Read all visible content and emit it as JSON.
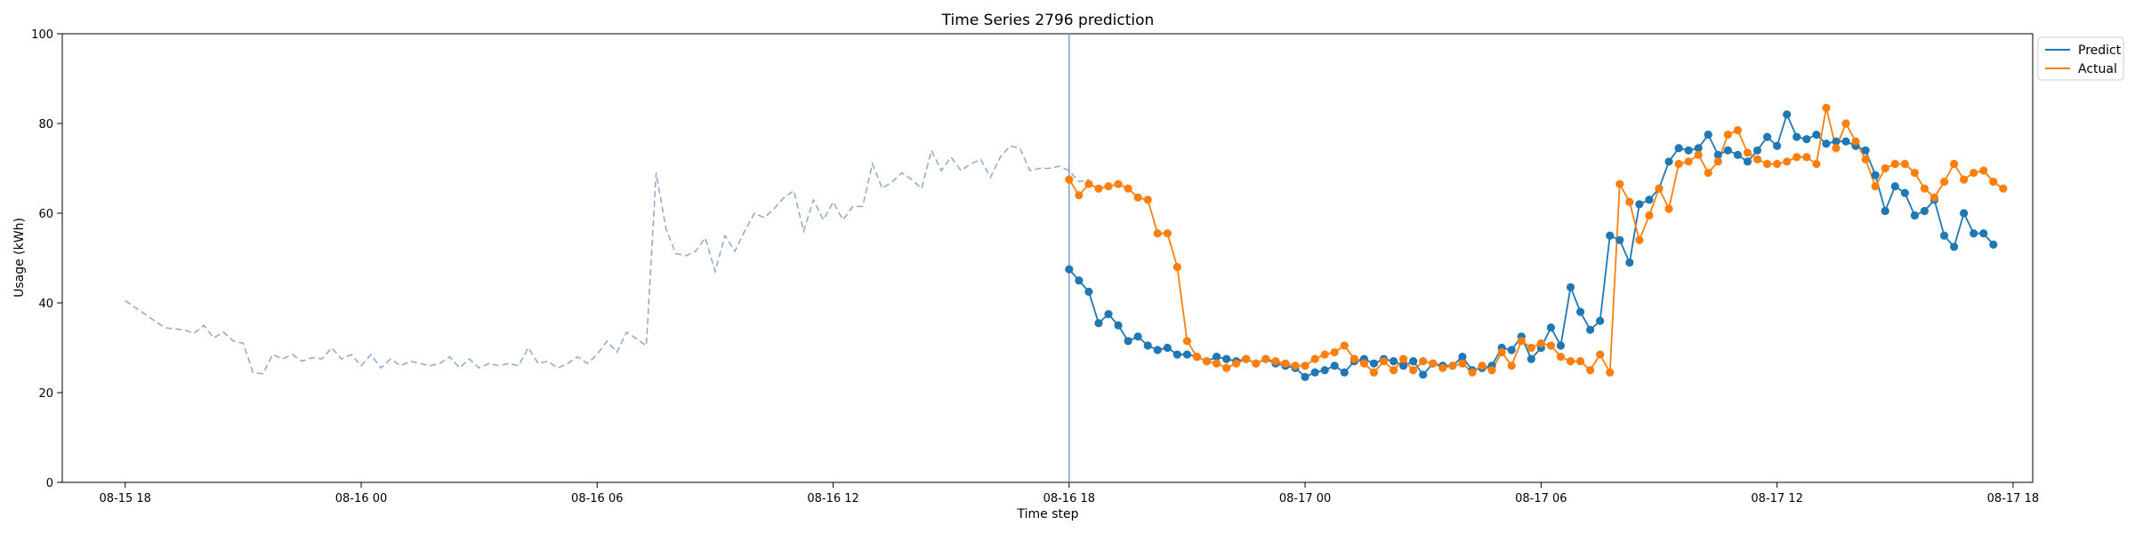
{
  "chart_data": {
    "type": "line",
    "title": "Time Series 2796 prediction",
    "xlabel": "Time step",
    "ylabel": "Usage (kWh)",
    "ylim": [
      0,
      100
    ],
    "yticks": [
      0,
      20,
      40,
      60,
      80,
      100
    ],
    "xlim_hours": [
      -1.6,
      48.5
    ],
    "xticks": [
      {
        "label": "08-15 18",
        "hour": 0
      },
      {
        "label": "08-16 00",
        "hour": 6
      },
      {
        "label": "08-16 06",
        "hour": 12
      },
      {
        "label": "08-16 12",
        "hour": 18
      },
      {
        "label": "08-16 18",
        "hour": 24
      },
      {
        "label": "08-17 00",
        "hour": 30
      },
      {
        "label": "08-17 06",
        "hour": 36
      },
      {
        "label": "08-17 12",
        "hour": 42
      },
      {
        "label": "08-17 18",
        "hour": 48
      }
    ],
    "grid": false,
    "legend_position": "top-right, outside plot",
    "split_marker_hour": 24,
    "history": {
      "start_hour": 0,
      "step_hours": 0.25,
      "color": "#8fa8c8",
      "values": [
        40.5,
        39.0,
        37.5,
        36.0,
        34.5,
        34.2,
        34.0,
        33.2,
        35.0,
        32.2,
        33.5,
        31.5,
        31.0,
        24.5,
        24.2,
        28.5,
        27.5,
        28.5,
        27.0,
        27.8,
        27.5,
        30.0,
        27.5,
        28.5,
        26.0,
        28.5,
        25.5,
        27.5,
        26.0,
        27.0,
        26.5,
        26.0,
        26.5,
        28.0,
        25.5,
        27.5,
        25.5,
        26.5,
        26.0,
        26.5,
        26.0,
        30.0,
        26.5,
        27.0,
        25.5,
        26.5,
        28.0,
        26.5,
        28.5,
        31.5,
        29.0,
        33.5,
        32.0,
        30.5,
        69.0,
        56.5,
        51.0,
        50.5,
        51.5,
        54.5,
        47.0,
        55.0,
        51.5,
        56.0,
        60.0,
        59.0,
        61.0,
        63.5,
        65.0,
        56.0,
        63.0,
        58.5,
        62.5,
        58.5,
        61.5,
        61.5,
        71.0,
        65.5,
        67.0,
        69.0,
        67.5,
        65.5,
        74.0,
        69.5,
        72.5,
        69.5,
        71.0,
        72.0,
        68.0,
        72.5,
        75.0,
        74.5,
        69.5,
        70.0,
        70.0,
        70.5,
        69.5,
        67.0,
        67.5
      ]
    },
    "series": [
      {
        "name": "Predict",
        "color": "#1f77b4",
        "start_hour": 24,
        "step_hours": 0.25,
        "values": [
          47.5,
          45.0,
          42.5,
          35.5,
          37.5,
          35.0,
          31.5,
          32.5,
          30.5,
          29.5,
          30.0,
          28.5,
          28.5,
          28.0,
          27.0,
          28.0,
          27.5,
          27.0,
          27.5,
          26.5,
          27.5,
          26.5,
          26.0,
          25.5,
          23.5,
          24.5,
          25.0,
          26.0,
          24.5,
          27.0,
          27.5,
          26.5,
          27.5,
          27.0,
          26.0,
          27.0,
          24.0,
          26.5,
          26.0,
          26.0,
          28.0,
          25.0,
          25.5,
          26.0,
          30.0,
          29.5,
          32.5,
          27.5,
          30.0,
          34.5,
          30.5,
          43.5,
          38.0,
          34.0,
          36.0,
          55.0,
          54.0,
          49.0,
          62.0,
          63.0,
          65.5,
          71.5,
          74.5,
          74.0,
          74.5,
          77.5,
          73.0,
          74.0,
          73.0,
          71.5,
          74.0,
          77.0,
          75.0,
          82.0,
          77.0,
          76.5,
          77.5,
          75.5,
          76.0,
          76.0,
          75.0,
          74.0,
          68.5,
          60.5,
          66.0,
          64.5,
          59.5,
          60.5,
          63.0,
          55.0,
          52.5,
          60.0,
          55.5,
          55.5,
          53.0
        ]
      },
      {
        "name": "Actual",
        "color": "#ff7f0e",
        "start_hour": 24,
        "step_hours": 0.25,
        "values": [
          67.5,
          64.0,
          66.5,
          65.5,
          66.0,
          66.5,
          65.5,
          63.5,
          63.0,
          55.5,
          55.5,
          48.0,
          31.5,
          28.0,
          27.0,
          26.5,
          25.5,
          26.5,
          27.5,
          26.5,
          27.5,
          27.0,
          26.5,
          26.0,
          26.0,
          27.5,
          28.5,
          29.0,
          30.5,
          27.5,
          26.5,
          24.5,
          27.0,
          25.0,
          27.5,
          25.0,
          27.0,
          26.5,
          25.5,
          26.0,
          26.5,
          24.5,
          26.0,
          25.0,
          29.0,
          26.0,
          31.5,
          30.0,
          31.0,
          30.5,
          28.0,
          27.0,
          27.0,
          25.0,
          28.5,
          24.5,
          66.5,
          62.5,
          54.0,
          59.5,
          65.5,
          61.0,
          71.0,
          71.5,
          73.0,
          69.0,
          71.5,
          77.5,
          78.5,
          73.5,
          72.0,
          71.0,
          71.0,
          71.5,
          72.5,
          72.5,
          71.0,
          83.5,
          74.5,
          80.0,
          76.0,
          72.0,
          66.0,
          70.0,
          71.0,
          71.0,
          69.0,
          65.5,
          63.5,
          67.0,
          71.0,
          67.5,
          69.0,
          69.5,
          67.0,
          65.5
        ]
      }
    ]
  }
}
